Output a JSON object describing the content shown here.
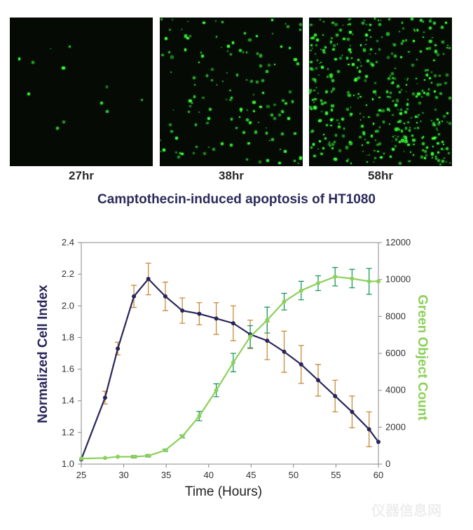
{
  "panels": [
    {
      "label": "27hr",
      "density": 12
    },
    {
      "label": "38hr",
      "density": 140
    },
    {
      "label": "58hr",
      "density": 420
    }
  ],
  "figure_title": "Camptothecin-induced apoptosis of HT1080",
  "watermark": "仪器信息网",
  "colors": {
    "cell_index": "#27265a",
    "green_count": "#8cd05a",
    "cell_err": "#c98a3a",
    "green_err": "#1a9a5a",
    "microscopy": "#3cff3c"
  },
  "chart_data": {
    "type": "line",
    "xlabel": "Time (Hours)",
    "ylabel": "Normalized Cell Index",
    "y2label": "Green Object Count",
    "xlim": [
      25,
      60
    ],
    "ylim": [
      1.0,
      2.4
    ],
    "y2lim": [
      0,
      12000
    ],
    "xticks": [
      25,
      30,
      35,
      40,
      45,
      50,
      55,
      60
    ],
    "yticks": [
      "1.0",
      "1.2",
      "1.4",
      "1.6",
      "1.8",
      "2.0",
      "2.2",
      "2.4"
    ],
    "y2ticks": [
      0,
      2000,
      4000,
      6000,
      8000,
      10000,
      12000
    ],
    "grid": false,
    "series": [
      {
        "name": "Normalized Cell Index",
        "axis": "left",
        "x": [
          25,
          27.8,
          29.3,
          31.2,
          32.9,
          34.9,
          36.9,
          38.9,
          40.9,
          42.9,
          44.9,
          46.9,
          48.9,
          50.9,
          52.9,
          54.9,
          56.9,
          58.9,
          60
        ],
        "y": [
          1.03,
          1.42,
          1.73,
          2.06,
          2.17,
          2.06,
          1.97,
          1.95,
          1.92,
          1.89,
          1.82,
          1.78,
          1.71,
          1.63,
          1.53,
          1.43,
          1.33,
          1.22,
          1.14
        ],
        "err": [
          0,
          0.04,
          0.04,
          0.07,
          0.1,
          0.09,
          0.08,
          0.07,
          0.1,
          0.11,
          0.09,
          0.12,
          0.13,
          0.12,
          0.1,
          0.1,
          0.1,
          0.11,
          0
        ]
      },
      {
        "name": "Green Object Count",
        "axis": "right",
        "x": [
          25,
          27.8,
          29.3,
          31.2,
          32.9,
          34.9,
          36.9,
          38.9,
          40.9,
          42.9,
          44.9,
          46.9,
          48.9,
          50.9,
          52.9,
          54.9,
          56.9,
          58.9,
          60
        ],
        "y": [
          300,
          330,
          400,
          400,
          450,
          750,
          1500,
          2600,
          4000,
          5500,
          6900,
          7800,
          8800,
          9400,
          9800,
          10150,
          10050,
          9900,
          9900
        ],
        "err": [
          0,
          0,
          0,
          60,
          60,
          60,
          80,
          250,
          350,
          500,
          600,
          700,
          450,
          500,
          400,
          500,
          500,
          700,
          0
        ]
      }
    ]
  }
}
